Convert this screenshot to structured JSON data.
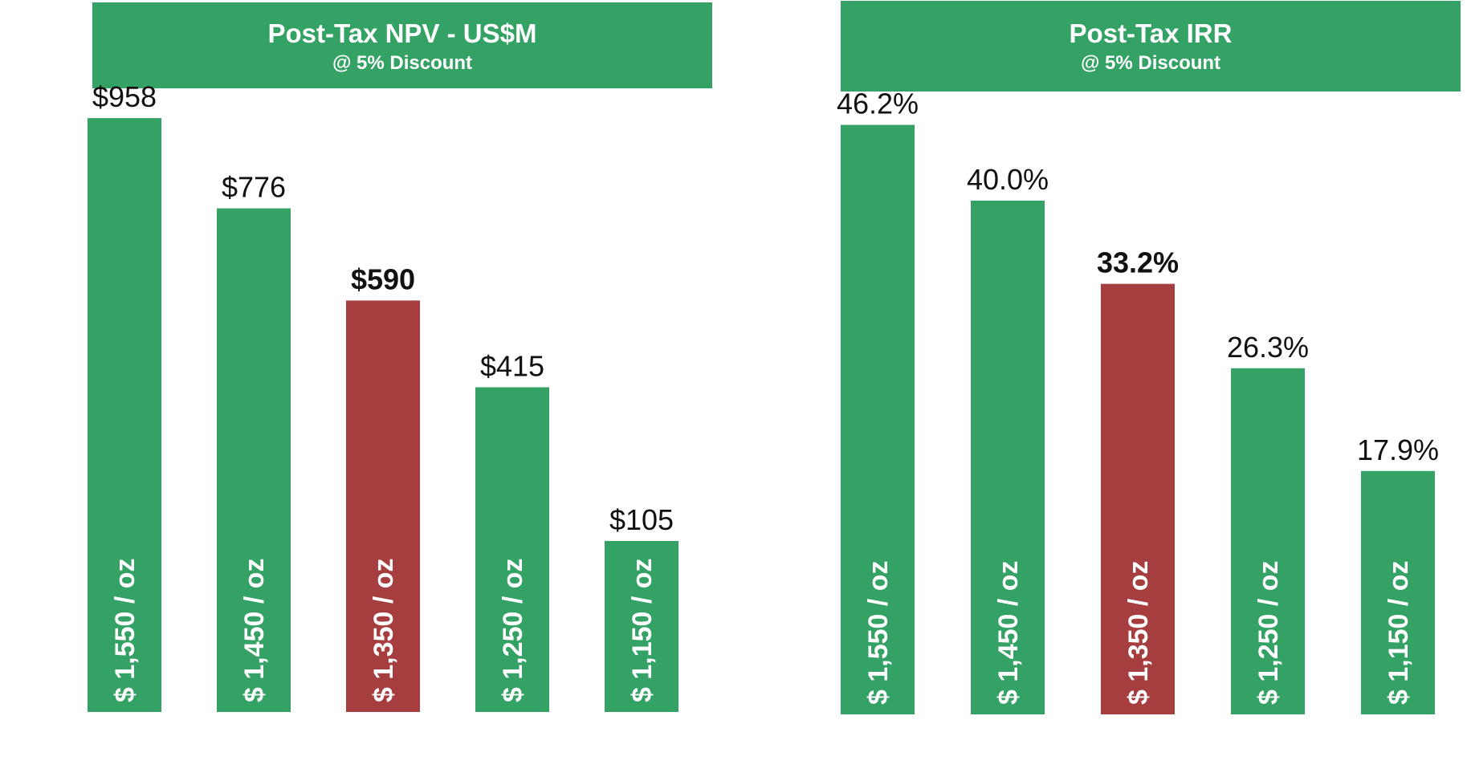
{
  "chart_data": [
    {
      "type": "bar",
      "title": "Post-Tax NPV - US$M",
      "subtitle": "@ 5% Discount",
      "categories": [
        "$ 1,550 / oz",
        "$ 1,450 / oz",
        "$ 1,350 / oz",
        "$ 1,250 / oz",
        "$ 1,150 / oz"
      ],
      "values": [
        958,
        776,
        590,
        415,
        105
      ],
      "value_labels": [
        "$958",
        "$776",
        "$590",
        "$415",
        "$105"
      ],
      "highlight_index": 2,
      "ylim": [
        -240,
        1010
      ],
      "colors": {
        "bar": "#35a265",
        "highlight": "#a63d3f"
      },
      "grid": false,
      "legend": "none"
    },
    {
      "type": "bar",
      "title": "Post-Tax IRR",
      "subtitle": "@ 5% Discount",
      "categories": [
        "$ 1,550 / oz",
        "$ 1,450 / oz",
        "$ 1,350 / oz",
        "$ 1,250 / oz",
        "$ 1,150 / oz"
      ],
      "values": [
        46.2,
        40.0,
        33.2,
        26.3,
        17.9
      ],
      "value_labels": [
        "46.2%",
        "40.0%",
        "33.2%",
        "26.3%",
        "17.9%"
      ],
      "highlight_index": 2,
      "ylim": [
        -2,
        48.4
      ],
      "colors": {
        "bar": "#35a265",
        "highlight": "#a63d3f"
      },
      "grid": false,
      "legend": "none"
    }
  ]
}
